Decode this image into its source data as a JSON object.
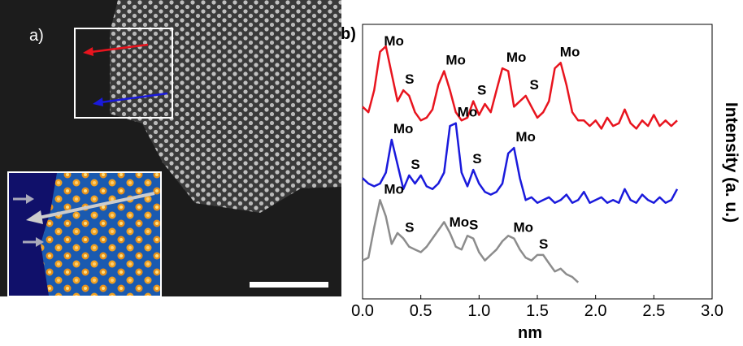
{
  "figure": {
    "panel_a_label": "a)"
  },
  "chart_data": {
    "type": "line",
    "panel_label": "b)",
    "xlabel": "nm",
    "ylabel": "Intensity (a. u.)",
    "xlim": [
      0,
      3
    ],
    "ylim": [
      0,
      10
    ],
    "xticks": [
      {
        "value": 0,
        "label": "0.0"
      },
      {
        "value": 0.5,
        "label": "0.5"
      },
      {
        "value": 1,
        "label": "1.0"
      },
      {
        "value": 1.5,
        "label": "1.5"
      },
      {
        "value": 2,
        "label": "2.0"
      },
      {
        "value": 2.5,
        "label": "2.5"
      },
      {
        "value": 3,
        "label": "3.0"
      }
    ],
    "x": [
      0,
      0.05,
      0.1,
      0.15,
      0.2,
      0.25,
      0.3,
      0.35,
      0.4,
      0.45,
      0.5,
      0.55,
      0.6,
      0.65,
      0.7,
      0.75,
      0.8,
      0.85,
      0.9,
      0.95,
      1,
      1.05,
      1.1,
      1.15,
      1.2,
      1.25,
      1.3,
      1.35,
      1.4,
      1.45,
      1.5,
      1.55,
      1.6,
      1.65,
      1.7,
      1.75,
      1.8,
      1.85,
      1.9,
      1.95,
      2,
      2.05,
      2.1,
      2.15,
      2.2,
      2.25,
      2.3,
      2.35,
      2.4,
      2.45,
      2.5,
      2.55,
      2.6,
      2.65,
      2.7
    ],
    "series": [
      {
        "color": "#e8141e",
        "values": [
          7.0,
          6.8,
          7.6,
          9.0,
          9.2,
          8.2,
          7.2,
          7.6,
          7.4,
          6.8,
          6.5,
          6.6,
          6.9,
          7.8,
          8.3,
          7.6,
          6.8,
          6.5,
          6.6,
          7.2,
          6.7,
          7.1,
          6.8,
          7.6,
          8.4,
          8.3,
          7.0,
          7.2,
          7.4,
          7.0,
          6.6,
          6.8,
          7.2,
          8.4,
          8.6,
          7.8,
          6.8,
          6.5,
          6.5,
          6.3,
          6.5,
          6.2,
          6.6,
          6.3,
          6.4,
          6.9,
          6.4,
          6.2,
          6.5,
          6.3,
          6.7,
          6.3,
          6.5,
          6.3,
          6.5
        ],
        "annotations": [
          {
            "text": "Mo",
            "x": 0.17
          },
          {
            "text": "S",
            "x": 0.35
          },
          {
            "text": "Mo",
            "x": 0.7
          },
          {
            "text": "S",
            "x": 0.97
          },
          {
            "text": "Mo",
            "x": 1.22
          },
          {
            "text": "S",
            "x": 1.42
          },
          {
            "text": "Mo",
            "x": 1.68
          }
        ]
      },
      {
        "color": "#1a1adc",
        "values": [
          4.4,
          4.2,
          4.1,
          4.2,
          4.6,
          5.8,
          4.9,
          4.0,
          4.5,
          4.2,
          4.5,
          4.1,
          4.0,
          4.2,
          4.6,
          6.3,
          6.4,
          4.6,
          4.1,
          4.7,
          4.2,
          3.9,
          3.8,
          3.9,
          4.2,
          5.3,
          5.5,
          4.4,
          3.6,
          3.7,
          3.5,
          3.6,
          3.7,
          3.5,
          3.6,
          3.8,
          3.5,
          3.6,
          3.9,
          3.5,
          3.6,
          3.7,
          3.5,
          3.6,
          3.5,
          4.0,
          3.6,
          3.5,
          3.8,
          3.6,
          3.5,
          3.7,
          3.5,
          3.6,
          4.0
        ],
        "annotations": [
          {
            "text": "Mo",
            "x": 0.25
          },
          {
            "text": "S",
            "x": 0.4
          },
          {
            "text": "Mo",
            "x": 0.8
          },
          {
            "text": "S",
            "x": 0.93
          },
          {
            "text": "Mo",
            "x": 1.3
          }
        ]
      },
      {
        "color": "#8c8c8c",
        "values": [
          1.4,
          1.5,
          2.6,
          3.6,
          3.0,
          2.0,
          2.4,
          2.2,
          1.9,
          1.8,
          1.7,
          1.9,
          2.2,
          2.5,
          2.8,
          2.4,
          1.9,
          1.8,
          2.3,
          2.2,
          1.7,
          1.4,
          1.6,
          1.8,
          2.1,
          2.3,
          2.2,
          1.8,
          1.5,
          1.4,
          1.6,
          1.6,
          1.3,
          1.0,
          1.1,
          0.9,
          0.8,
          0.6,
          null,
          null,
          null,
          null,
          null,
          null,
          null,
          null,
          null,
          null,
          null,
          null,
          null,
          null,
          null,
          null,
          null
        ],
        "annotations": [
          {
            "text": "Mo",
            "x": 0.17
          },
          {
            "text": "S",
            "x": 0.35
          },
          {
            "text": "Mo",
            "x": 0.73
          },
          {
            "text": "S",
            "x": 0.9
          },
          {
            "text": "Mo",
            "x": 1.28
          },
          {
            "text": "S",
            "x": 1.5
          }
        ]
      }
    ]
  }
}
